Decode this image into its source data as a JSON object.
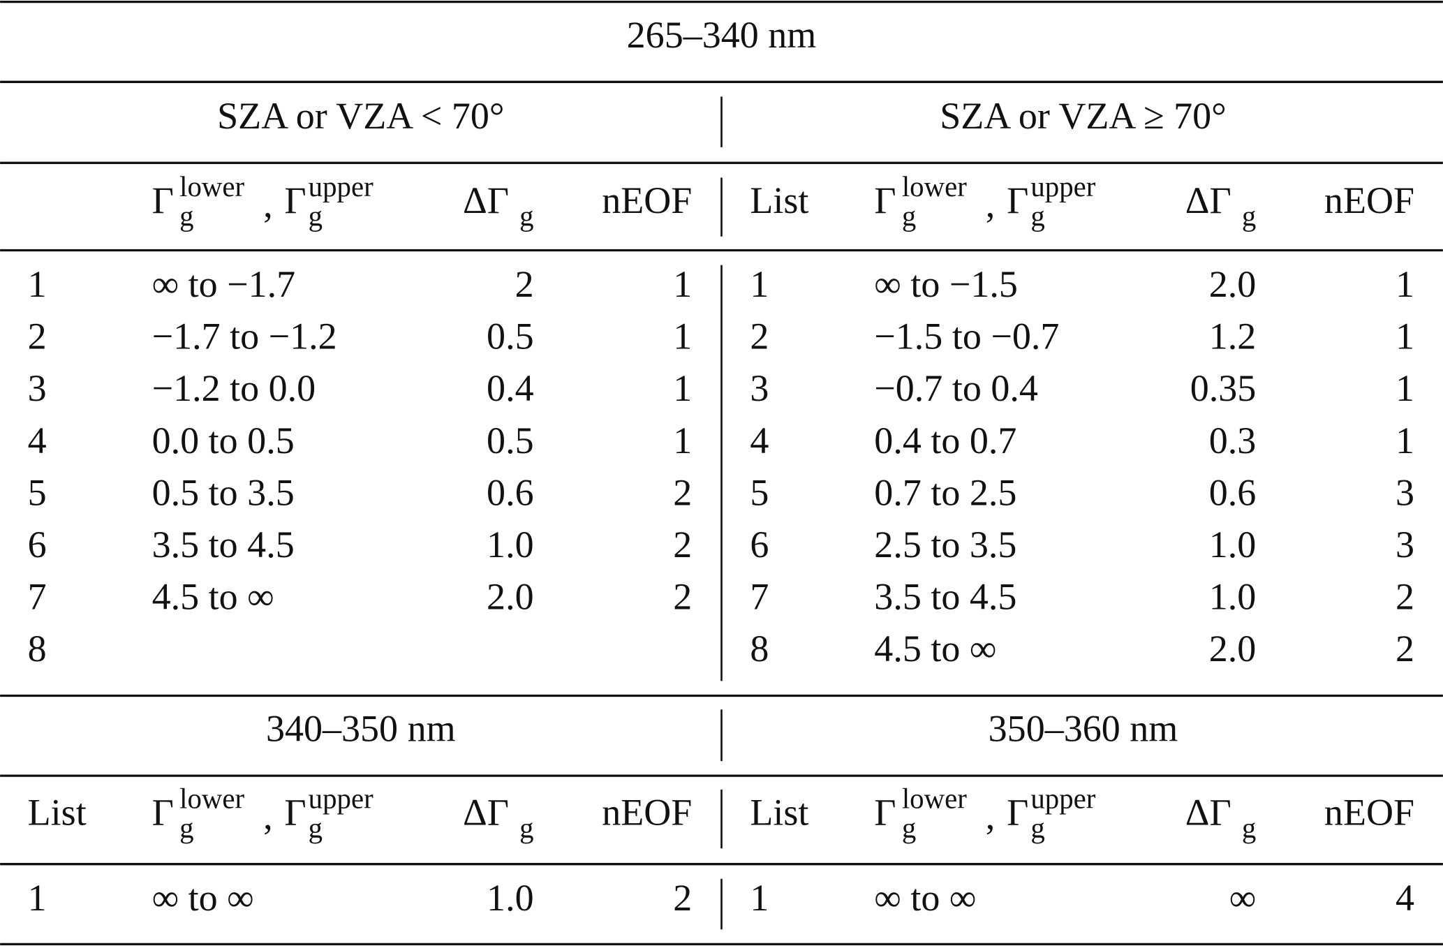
{
  "sections": [
    {
      "title": "265–340 nm",
      "panels": [
        {
          "heading": "SZA or VZA < 70°",
          "header": {
            "range": {
              "gamma1": "Γ",
              "sub1": "g",
              "sup1": "lower",
              "sep": ",",
              "gamma2": "Γ",
              "sub2": "g",
              "sup2": "upper"
            },
            "delta": {
              "symbol": "ΔΓ",
              "sub": "g"
            },
            "neof": "nEOF"
          },
          "rows": [
            [
              "1",
              "∞ to −1.7",
              "2",
              "1"
            ],
            [
              "2",
              "−1.7 to −1.2",
              "0.5",
              "1"
            ],
            [
              "3",
              "−1.2 to 0.0",
              "0.4",
              "1"
            ],
            [
              "4",
              "0.0 to 0.5",
              "0.5",
              "1"
            ],
            [
              "5",
              "0.5 to 3.5",
              "0.6",
              "2"
            ],
            [
              "6",
              "3.5 to 4.5",
              "1.0",
              "2"
            ],
            [
              "7",
              "4.5 to ∞",
              "2.0",
              "2"
            ],
            [
              "8"
            ]
          ]
        },
        {
          "heading": "SZA or VZA ≥ 70°",
          "header": {
            "list": "List",
            "range": {
              "gamma1": "Γ",
              "sub1": "g",
              "sup1": "lower",
              "sep": ",",
              "gamma2": "Γ",
              "sub2": "g",
              "sup2": "upper"
            },
            "delta": {
              "symbol": "ΔΓ",
              "sub": "g"
            },
            "neof": "nEOF"
          },
          "rows": [
            [
              "1",
              "∞ to −1.5",
              "2.0",
              "1"
            ],
            [
              "2",
              "−1.5 to −0.7",
              "1.2",
              "1"
            ],
            [
              "3",
              "−0.7 to 0.4",
              "0.35",
              "1"
            ],
            [
              "4",
              "0.4 to 0.7",
              "0.3",
              "1"
            ],
            [
              "5",
              "0.7 to 2.5",
              "0.6",
              "3"
            ],
            [
              "6",
              "2.5 to 3.5",
              "1.0",
              "3"
            ],
            [
              "7",
              "3.5 to 4.5",
              "1.0",
              "2"
            ],
            [
              "8",
              "4.5 to ∞",
              "2.0",
              "2"
            ]
          ]
        }
      ]
    },
    {
      "panels": [
        {
          "heading": "340–350 nm",
          "header": {
            "list": "List",
            "range": {
              "gamma1": "Γ",
              "sub1": "g",
              "sup1": "lower",
              "sep": ",",
              "gamma2": "Γ",
              "sub2": "g",
              "sup2": "upper"
            },
            "delta": {
              "symbol": "ΔΓ",
              "sub": "g"
            },
            "neof": "nEOF"
          },
          "rows": [
            [
              "1",
              "∞ to ∞",
              "1.0",
              "2"
            ]
          ]
        },
        {
          "heading": "350–360 nm",
          "header": {
            "list": "List",
            "range": {
              "gamma1": "Γ",
              "sub1": "g",
              "sup1": "lower",
              "sep": ",",
              "gamma2": "Γ",
              "sub2": "g",
              "sup2": "upper"
            },
            "delta": {
              "symbol": "ΔΓ",
              "sub": "g"
            },
            "neof": "nEOF"
          },
          "rows": [
            [
              "1",
              "∞ to ∞",
              "∞",
              "4"
            ]
          ]
        }
      ]
    }
  ]
}
